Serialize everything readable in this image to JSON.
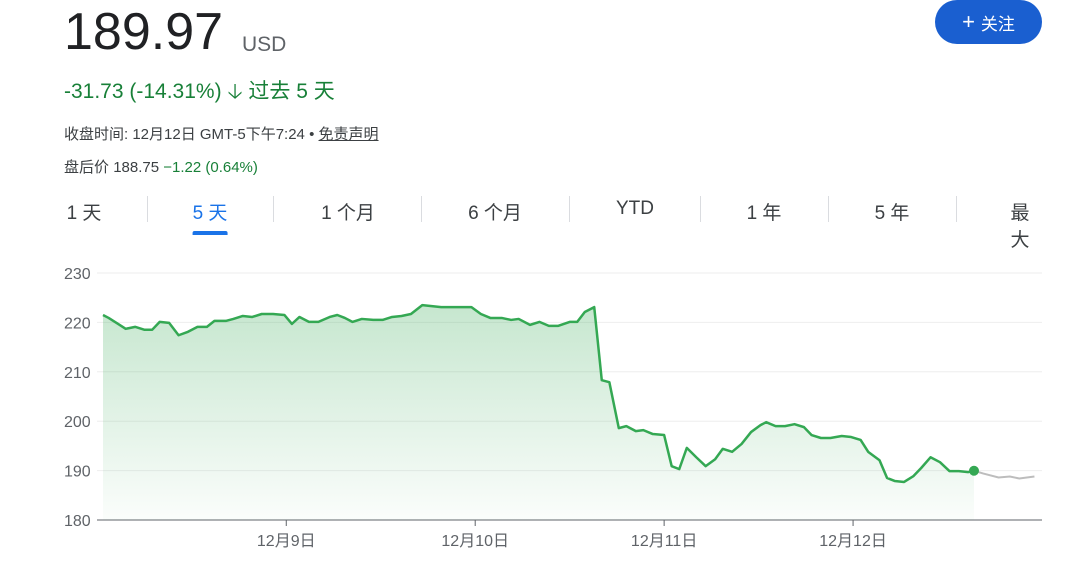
{
  "header": {
    "price": "189.97",
    "currency": "USD",
    "follow_label": "关注",
    "change": "-31.73 (-14.31%)",
    "change_period": "过去 5 天",
    "close_time": "收盘时间: 12月12日 GMT-5下午7:24",
    "separator": "•",
    "disclaimer": "免责声明",
    "after_hours_label": "盘后价",
    "after_hours_price": "188.75",
    "after_hours_change": "−1.22 (0.64%)"
  },
  "tabs": [
    {
      "label": "1 天"
    },
    {
      "label": "5 天",
      "active": true
    },
    {
      "label": "1 个月"
    },
    {
      "label": "6 个月"
    },
    {
      "label": "YTD"
    },
    {
      "label": "1 年"
    },
    {
      "label": "5 年"
    },
    {
      "label": "最大"
    }
  ],
  "colors": {
    "up_down": "#188038",
    "line": "#34a853",
    "after_hours_line": "#bdbdbd",
    "accent": "#1a73e8"
  },
  "chart_data": {
    "type": "area",
    "grid": true,
    "ylim": [
      180,
      230
    ],
    "yticks": [
      180,
      190,
      200,
      210,
      220,
      230
    ],
    "xlim": [
      8.03,
      13.0
    ],
    "xticks": [
      {
        "x": 9,
        "label": "12月9日"
      },
      {
        "x": 10,
        "label": "12月10日"
      },
      {
        "x": 11,
        "label": "12月11日"
      },
      {
        "x": 12,
        "label": "12月12日"
      }
    ],
    "series": [
      {
        "kind": "regular",
        "x": [
          8.03,
          8.06,
          8.11,
          8.15,
          8.2,
          8.25,
          8.29,
          8.33,
          8.38,
          8.43,
          8.48,
          8.53,
          8.58,
          8.62,
          8.68,
          8.72,
          8.77,
          8.82,
          8.87,
          8.93,
          8.99,
          9.03,
          9.07,
          9.12,
          9.17,
          9.23,
          9.27,
          9.31,
          9.35,
          9.4,
          9.46,
          9.51,
          9.56,
          9.61,
          9.66,
          9.72,
          9.77,
          9.82,
          9.87,
          9.93,
          9.98,
          10.03,
          10.08,
          10.14,
          10.19,
          10.23,
          10.29,
          10.34,
          10.39,
          10.44,
          10.5,
          10.54,
          10.58,
          10.63,
          10.67,
          10.71,
          10.76,
          10.8,
          10.85,
          10.89,
          10.94,
          11.0,
          11.04,
          11.08,
          11.12,
          11.17,
          11.22,
          11.27,
          11.31,
          11.36,
          11.41,
          11.46,
          11.51,
          11.54,
          11.59,
          11.64,
          11.69,
          11.74,
          11.78,
          11.83,
          11.88,
          11.94,
          11.99,
          12.04,
          12.08,
          12.14,
          12.18,
          12.22,
          12.27,
          12.32,
          12.36,
          12.41,
          12.46,
          12.51,
          12.56,
          12.61,
          12.64
        ],
        "y": [
          221.5,
          220.9,
          219.7,
          218.7,
          219.1,
          218.5,
          218.5,
          220.1,
          219.9,
          217.4,
          218.1,
          219.1,
          219.1,
          220.3,
          220.3,
          220.7,
          221.3,
          221.1,
          221.7,
          221.7,
          221.5,
          219.7,
          221.1,
          220.1,
          220.1,
          221.1,
          221.5,
          220.9,
          220.1,
          220.7,
          220.5,
          220.5,
          221.1,
          221.3,
          221.7,
          223.5,
          223.3,
          223.1,
          223.1,
          223.1,
          223.1,
          221.7,
          220.9,
          220.9,
          220.5,
          220.7,
          219.5,
          220.1,
          219.3,
          219.3,
          220.1,
          220.1,
          222.1,
          223.1,
          208.3,
          207.9,
          198.6,
          199.0,
          198.0,
          198.2,
          197.4,
          197.2,
          190.9,
          190.3,
          194.6,
          192.7,
          190.9,
          192.3,
          194.4,
          193.8,
          195.4,
          197.8,
          199.2,
          199.8,
          199.0,
          199.0,
          199.4,
          198.8,
          197.2,
          196.6,
          196.6,
          197.0,
          196.8,
          196.2,
          193.8,
          192.1,
          188.5,
          187.9,
          187.7,
          188.9,
          190.5,
          192.7,
          191.7,
          189.9,
          189.9,
          189.7,
          189.97
        ]
      },
      {
        "kind": "after-hours",
        "x": [
          12.64,
          12.69,
          12.77,
          12.83,
          12.88,
          12.96
        ],
        "y": [
          189.97,
          189.4,
          188.6,
          188.8,
          188.4,
          188.8
        ]
      }
    ]
  }
}
